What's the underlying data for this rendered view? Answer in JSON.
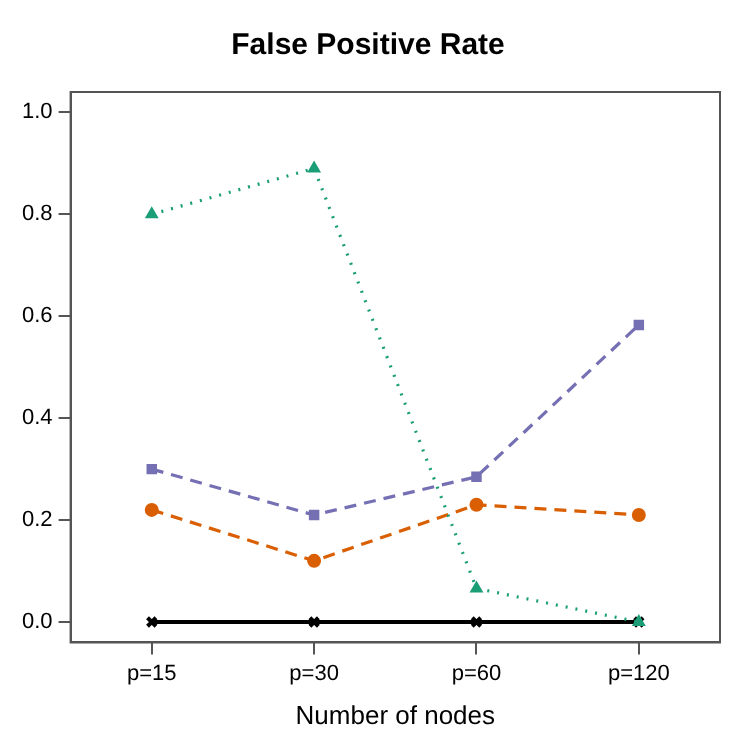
{
  "chart_data": {
    "type": "line",
    "title": "False Positive Rate",
    "xlabel": "Number of nodes",
    "categories": [
      "p=15",
      "p=30",
      "p=60",
      "p=120"
    ],
    "series": [
      {
        "color": "#1b9e77",
        "values": [
          0.8,
          0.89,
          0.066,
          0.0
        ],
        "marker": "triangle",
        "line_style": "dotted"
      },
      {
        "color": "#7570b3",
        "values": [
          0.3,
          0.21,
          0.285,
          0.583
        ],
        "marker": "square",
        "line_style": "dashed"
      },
      {
        "color": "#d95f02",
        "values": [
          0.22,
          0.12,
          0.23,
          0.21
        ],
        "marker": "circle",
        "line_style": "dashed"
      },
      {
        "color": "#000000",
        "values": [
          0.0,
          0.0,
          0.0,
          0.0
        ],
        "marker": "cross",
        "line_style": "solid"
      }
    ],
    "ylim": [
      -0.04,
      1.04
    ],
    "yticks": [
      {
        "value": 0,
        "label": "0.0"
      },
      {
        "value": 0.2,
        "label": "0.2"
      },
      {
        "value": 0.4,
        "label": "0.4"
      },
      {
        "value": 0.6,
        "label": "0.6"
      },
      {
        "value": 0.8,
        "label": "0.8"
      },
      {
        "value": 1,
        "label": "1.0"
      }
    ],
    "grid": false,
    "legend": false
  }
}
